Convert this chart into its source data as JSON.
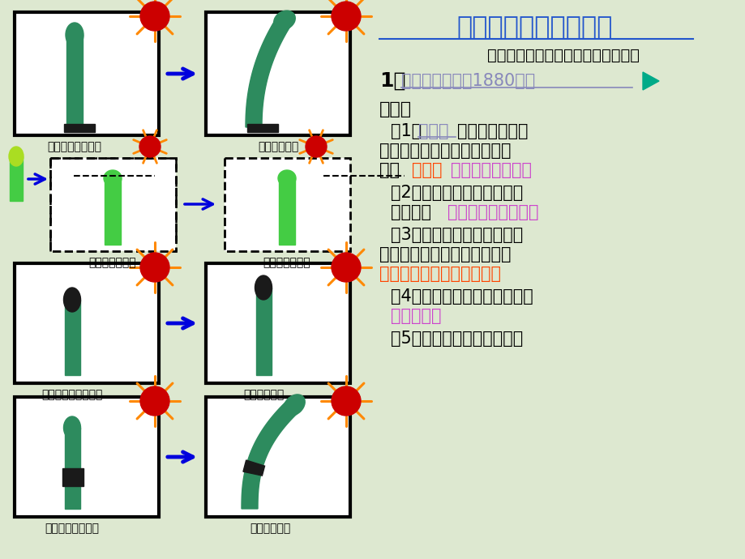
{
  "bg_color": "#dde8d0",
  "title": "一、生长素的发现过程",
  "subtitle": "（一）、关于生长素的经典探究实验",
  "title_color": "#2255cc",
  "subtitle_color": "#000000",
  "item1_label": "1、",
  "item1_text": "达尔文的实验（1880年）",
  "item1_text_color": "#8888bb",
  "item1_nav_color": "#00aa88",
  "think_label": "思考：",
  "q1_prefix": "（1）",
  "q1_highlight": "胚芽鞘",
  "q1_highlight_color": "#8888bb",
  "q1_main": "弯曲生长的外在",
  "q1_line2": "因素是什么？内在条件又是什",
  "q1_line3": "么？",
  "q1_answer": "单侧光",
  "q1_answer_color": "#ff4400",
  "q1_answer2": "胚芽鞘尖端的有无",
  "q1_answer2_color": "#cc44cc",
  "q2_line1": "（2）胚芽鞘弯曲生长的是哪",
  "q2_line2": "一部分？",
  "q2_answer": "胚芽鞘尖端以下部位",
  "q2_answer_color": "#cc44cc",
  "q3_line1": "（3）分别遮盖胚芽鞘的顶端",
  "q3_line2": "和它下面一段的目的是什么？",
  "q3_answer": "判断感受光刺激是哪个部位",
  "q3_answer_color": "#ff4400",
  "q4_line1": "（4）感受光刺激的是哪部分？",
  "q4_answer": "胚芽鞘尖端",
  "q4_answer_color": "#cc44cc",
  "q5_line1": "（5）该实验的结论是什么？",
  "box1_label": "胚芽鞘在单侧光下",
  "box2_label": "向光弯曲生长",
  "box3_label": "去掉胚芽鞘尖端",
  "box4_label": "不生长也不弯曲",
  "box5_label": "锡箔罩住胚芽鞘尖端",
  "box6_label": "生长但不弯曲",
  "box7_label": "罩住尖端以下部位",
  "box8_label": "向光弯曲生长",
  "green_plant": "#2d8b5e",
  "bright_green": "#44cc44",
  "dark_cap": "#1a1a1a",
  "sun_color": "#cc0000",
  "ray_color": "#ff8800",
  "arrow_color": "#0000dd"
}
